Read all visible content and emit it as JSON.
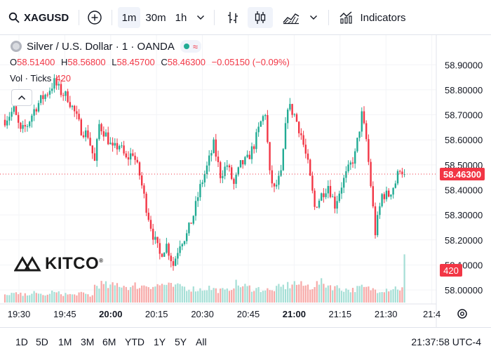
{
  "toolbar": {
    "symbol": "XAGUSD",
    "intervals": [
      "1m",
      "30m",
      "1h"
    ],
    "active_interval": "1m",
    "indicators_label": "Indicators"
  },
  "legend": {
    "title": "Silver / U.S. Dollar · 1 · OANDA",
    "badge": "≈",
    "open_key": "O",
    "open": "58.51400",
    "high_key": "H",
    "high": "58.56800",
    "low_key": "L",
    "low": "58.45700",
    "close_key": "C",
    "close": "58.46300",
    "change": "−0.05150 (−0.09%)",
    "vol_label": "Vol · Ticks",
    "vol_value": "420"
  },
  "logo": {
    "text": "KITCO",
    "mark": "®"
  },
  "bottom": {
    "ranges": [
      "1D",
      "5D",
      "1M",
      "3M",
      "6M",
      "YTD",
      "1Y",
      "5Y",
      "All"
    ],
    "clock": "21:37:58 UTC-4"
  },
  "colors": {
    "up": "#22ab94",
    "down": "#f23645",
    "up_vol": "#a5dfd6",
    "down_vol": "#f7a9a7"
  },
  "chart_data": {
    "type": "candlestick",
    "interval": "1m",
    "y_range": [
      57.975,
      58.94
    ],
    "y_ticks": [
      "58.90000",
      "58.80000",
      "58.70000",
      "58.60000",
      "58.50000",
      "58.40000",
      "58.30000",
      "58.20000",
      "58.10000",
      "58.00000"
    ],
    "y_tick_values": [
      58.9,
      58.8,
      58.7,
      58.6,
      58.5,
      58.4,
      58.3,
      58.2,
      58.1,
      58.0
    ],
    "x_ticks": [
      "19:30",
      "19:45",
      "20:00",
      "20:15",
      "20:30",
      "20:45",
      "21:00",
      "21:15",
      "21:30",
      "21:4"
    ],
    "x_tick_bold": [
      false,
      false,
      true,
      false,
      false,
      false,
      true,
      false,
      false,
      false
    ],
    "last_price": "58.46300",
    "last_price_value": 58.463,
    "volume_label": "420",
    "volume_max": 520,
    "volume_last": 420,
    "waypoints": [
      [
        0,
        58.68
      ],
      [
        4,
        58.72
      ],
      [
        7,
        58.63
      ],
      [
        10,
        58.66
      ],
      [
        13,
        58.72
      ],
      [
        16,
        58.76
      ],
      [
        19,
        58.79
      ],
      [
        22,
        58.83
      ],
      [
        25,
        58.79
      ],
      [
        28,
        58.77
      ],
      [
        31,
        58.71
      ],
      [
        34,
        58.64
      ],
      [
        37,
        58.62
      ],
      [
        40,
        58.51
      ],
      [
        42,
        58.66
      ],
      [
        45,
        58.62
      ],
      [
        48,
        58.56
      ],
      [
        51,
        58.58
      ],
      [
        54,
        58.52
      ],
      [
        57,
        58.55
      ],
      [
        60,
        58.46
      ],
      [
        63,
        58.33
      ],
      [
        66,
        58.22
      ],
      [
        69,
        58.14
      ],
      [
        72,
        58.18
      ],
      [
        75,
        58.1
      ],
      [
        78,
        58.19
      ],
      [
        81,
        58.22
      ],
      [
        84,
        58.3
      ],
      [
        87,
        58.41
      ],
      [
        90,
        58.49
      ],
      [
        93,
        58.58
      ],
      [
        96,
        58.46
      ],
      [
        99,
        58.5
      ],
      [
        102,
        58.42
      ],
      [
        105,
        58.5
      ],
      [
        108,
        58.52
      ],
      [
        111,
        58.58
      ],
      [
        114,
        58.67
      ],
      [
        116,
        58.71
      ],
      [
        118,
        58.46
      ],
      [
        120,
        58.4
      ],
      [
        123,
        58.46
      ],
      [
        126,
        58.74
      ],
      [
        129,
        58.7
      ],
      [
        132,
        58.62
      ],
      [
        135,
        58.5
      ],
      [
        138,
        58.33
      ],
      [
        141,
        58.38
      ],
      [
        144,
        58.42
      ],
      [
        147,
        58.34
      ],
      [
        150,
        58.42
      ],
      [
        153,
        58.48
      ],
      [
        156,
        58.54
      ],
      [
        159,
        58.7
      ],
      [
        161,
        58.6
      ],
      [
        163,
        58.42
      ],
      [
        165,
        58.23
      ],
      [
        168,
        58.38
      ],
      [
        171,
        58.38
      ],
      [
        174,
        58.43
      ],
      [
        176,
        58.49
      ],
      [
        178,
        58.463
      ]
    ],
    "volume_base": [
      60,
      80,
      75,
      70,
      65,
      80,
      85,
      70,
      75,
      60,
      90,
      85,
      80,
      75,
      70,
      65,
      80,
      75,
      70,
      60,
      150,
      160,
      150,
      140,
      145,
      160,
      150,
      140,
      130,
      150,
      140,
      155,
      150,
      145,
      150,
      160,
      145,
      140,
      135,
      150,
      130,
      125,
      120,
      115,
      120,
      130,
      120,
      110,
      105,
      100,
      130,
      160,
      150,
      140,
      130,
      125,
      120,
      115,
      110,
      100,
      120,
      130,
      140,
      150,
      170,
      160,
      150,
      145,
      140,
      160,
      170,
      160,
      150,
      140,
      130,
      120,
      115,
      110,
      120,
      130,
      125,
      120,
      115,
      110,
      115,
      120,
      125,
      130,
      120,
      115
    ]
  }
}
